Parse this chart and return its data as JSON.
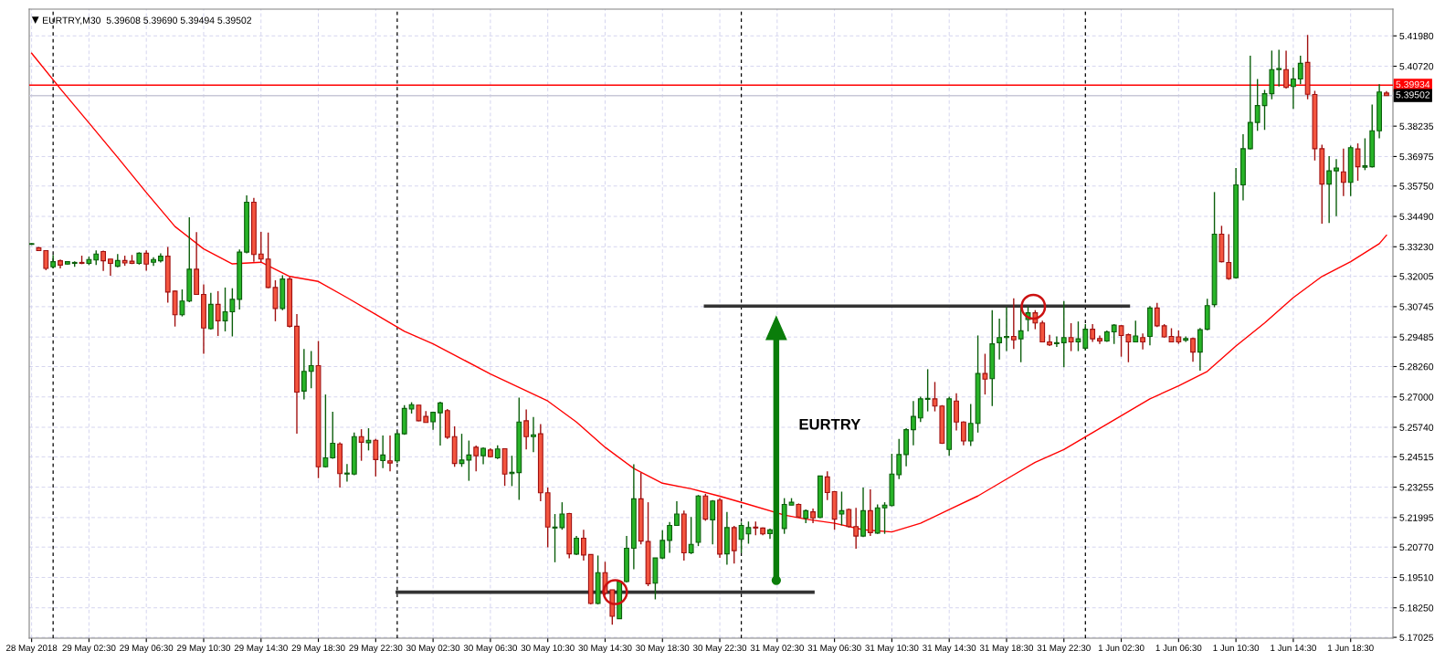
{
  "chart_data": {
    "type": "candlestick",
    "title": "EURTRY,M30  5.39608 5.39690 5.39494 5.39502",
    "annotations": [
      "EURTRY"
    ],
    "x": [
      "2018-05-28T22:30",
      "2018-05-28T23:00",
      "2018-05-28T23:30",
      "2018-05-29T00:00",
      "2018-05-29T00:30",
      "2018-05-29T01:00",
      "2018-05-29T01:30",
      "2018-05-29T02:00",
      "2018-05-29T02:30",
      "2018-05-29T03:00",
      "2018-05-29T03:30",
      "2018-05-29T04:00",
      "2018-05-29T04:30",
      "2018-05-29T05:00",
      "2018-05-29T05:30",
      "2018-05-29T06:00",
      "2018-05-29T06:30",
      "2018-05-29T07:00",
      "2018-05-29T07:30",
      "2018-05-29T08:00",
      "2018-05-29T08:30",
      "2018-05-29T09:00",
      "2018-05-29T09:30",
      "2018-05-29T10:00",
      "2018-05-29T10:30",
      "2018-05-29T11:00",
      "2018-05-29T11:30",
      "2018-05-29T12:00",
      "2018-05-29T12:30",
      "2018-05-29T13:00",
      "2018-05-29T13:30",
      "2018-05-29T14:00",
      "2018-05-29T14:30",
      "2018-05-29T15:00",
      "2018-05-29T15:30",
      "2018-05-29T16:00",
      "2018-05-29T16:30",
      "2018-05-29T17:00",
      "2018-05-29T17:30",
      "2018-05-29T18:00",
      "2018-05-29T18:30",
      "2018-05-29T19:00",
      "2018-05-29T19:30",
      "2018-05-29T20:00",
      "2018-05-29T20:30",
      "2018-05-29T21:00",
      "2018-05-29T21:30",
      "2018-05-29T22:00",
      "2018-05-29T22:30",
      "2018-05-29T23:00",
      "2018-05-29T23:30",
      "2018-05-30T00:00",
      "2018-05-30T00:30",
      "2018-05-30T01:00",
      "2018-05-30T01:30",
      "2018-05-30T02:00",
      "2018-05-30T02:30",
      "2018-05-30T03:00",
      "2018-05-30T03:30",
      "2018-05-30T04:00",
      "2018-05-30T04:30",
      "2018-05-30T05:00",
      "2018-05-30T05:30",
      "2018-05-30T06:00",
      "2018-05-30T06:30",
      "2018-05-30T07:00",
      "2018-05-30T07:30",
      "2018-05-30T08:00",
      "2018-05-30T08:30",
      "2018-05-30T09:00",
      "2018-05-30T09:30",
      "2018-05-30T10:00",
      "2018-05-30T10:30",
      "2018-05-30T11:00",
      "2018-05-30T11:30",
      "2018-05-30T12:00",
      "2018-05-30T12:30",
      "2018-05-30T13:00",
      "2018-05-30T13:30",
      "2018-05-30T14:00",
      "2018-05-30T14:30",
      "2018-05-30T15:00",
      "2018-05-30T15:30",
      "2018-05-30T16:00",
      "2018-05-30T16:30",
      "2018-05-30T17:00",
      "2018-05-30T17:30",
      "2018-05-30T18:00",
      "2018-05-30T18:30",
      "2018-05-30T19:00",
      "2018-05-30T19:30",
      "2018-05-30T20:00",
      "2018-05-30T20:30",
      "2018-05-30T21:00",
      "2018-05-30T21:30",
      "2018-05-30T22:00",
      "2018-05-30T22:30",
      "2018-05-30T23:00",
      "2018-05-30T23:30",
      "2018-05-31T00:00",
      "2018-05-31T00:30",
      "2018-05-31T01:00",
      "2018-05-31T01:30",
      "2018-05-31T02:00",
      "2018-05-31T03:00",
      "2018-05-31T03:30",
      "2018-05-31T04:00",
      "2018-05-31T04:30",
      "2018-05-31T05:00",
      "2018-05-31T05:30",
      "2018-05-31T06:00",
      "2018-05-31T06:30",
      "2018-05-31T07:00",
      "2018-05-31T07:30",
      "2018-05-31T08:00",
      "2018-05-31T08:30",
      "2018-05-31T09:00",
      "2018-05-31T09:30",
      "2018-05-31T10:00",
      "2018-05-31T10:30",
      "2018-05-31T11:00",
      "2018-05-31T11:30",
      "2018-05-31T12:00",
      "2018-05-31T12:30",
      "2018-05-31T13:00",
      "2018-05-31T13:30",
      "2018-05-31T14:00",
      "2018-05-31T14:30",
      "2018-05-31T15:00",
      "2018-05-31T15:30",
      "2018-05-31T16:00",
      "2018-05-31T16:30",
      "2018-05-31T17:00",
      "2018-05-31T17:30",
      "2018-05-31T18:00",
      "2018-05-31T18:30",
      "2018-05-31T19:00",
      "2018-05-31T19:30",
      "2018-05-31T20:00",
      "2018-05-31T20:30",
      "2018-05-31T21:00",
      "2018-05-31T21:30",
      "2018-05-31T22:00",
      "2018-05-31T22:30",
      "2018-05-31T23:00",
      "2018-05-31T23:30",
      "2018-06-01T00:00",
      "2018-06-01T00:30",
      "2018-06-01T01:00",
      "2018-06-01T01:30",
      "2018-06-01T02:00",
      "2018-06-01T02:30",
      "2018-06-01T03:00",
      "2018-06-01T03:30",
      "2018-06-01T04:00",
      "2018-06-01T04:30",
      "2018-06-01T05:00",
      "2018-06-01T05:30",
      "2018-06-01T06:00",
      "2018-06-01T06:30",
      "2018-06-01T07:00",
      "2018-06-01T07:30",
      "2018-06-01T08:00",
      "2018-06-01T08:30",
      "2018-06-01T09:00",
      "2018-06-01T09:30",
      "2018-06-01T10:00",
      "2018-06-01T10:30",
      "2018-06-01T11:00",
      "2018-06-01T11:30",
      "2018-06-01T12:00",
      "2018-06-01T12:30",
      "2018-06-01T13:00",
      "2018-06-01T13:30",
      "2018-06-01T14:00",
      "2018-06-01T14:30",
      "2018-06-01T15:00",
      "2018-06-01T15:30",
      "2018-06-01T16:00",
      "2018-06-01T16:30",
      "2018-06-01T17:00",
      "2018-06-01T17:30",
      "2018-06-01T18:00",
      "2018-06-01T18:30",
      "2018-06-01T19:00",
      "2018-06-01T19:30",
      "2018-06-01T20:00",
      "2018-06-01T20:30",
      "2018-06-01T21:00"
    ],
    "ohlc": [
      [
        5.3333,
        5.3338,
        5.3331,
        5.3336
      ],
      [
        5.3319,
        5.3322,
        5.3307,
        5.3307
      ],
      [
        5.3307,
        5.3309,
        5.3226,
        5.3233
      ],
      [
        5.324,
        5.3289,
        5.3233,
        5.3261
      ],
      [
        5.3265,
        5.327,
        5.3233,
        5.3247
      ],
      [
        5.3251,
        5.3263,
        5.3249,
        5.3261
      ],
      [
        5.3254,
        5.3263,
        5.324,
        5.3258
      ],
      [
        5.3258,
        5.3286,
        5.3251,
        5.3254
      ],
      [
        5.3254,
        5.3282,
        5.3247,
        5.327
      ],
      [
        5.3268,
        5.3308,
        5.3247,
        5.3293
      ],
      [
        5.3303,
        5.3307,
        5.3223,
        5.3265
      ],
      [
        5.3272,
        5.3272,
        5.3203,
        5.3254
      ],
      [
        5.3242,
        5.3293,
        5.3238,
        5.3266
      ],
      [
        5.3266,
        5.3286,
        5.3244,
        5.3256
      ],
      [
        5.3263,
        5.3289,
        5.3251,
        5.3254
      ],
      [
        5.3254,
        5.33,
        5.3249,
        5.3296
      ],
      [
        5.3296,
        5.3308,
        5.3224,
        5.3251
      ],
      [
        5.3259,
        5.328,
        5.3244,
        5.327
      ],
      [
        5.3265,
        5.3296,
        5.3258,
        5.3284
      ],
      [
        5.3284,
        5.3322,
        5.3091,
        5.3135
      ],
      [
        5.3139,
        5.3142,
        5.2992,
        5.3041
      ],
      [
        5.3041,
        5.3146,
        5.3034,
        5.3098
      ],
      [
        5.3098,
        5.3445,
        5.3093,
        5.323
      ],
      [
        5.323,
        5.3384,
        5.3125,
        5.3125
      ],
      [
        5.3125,
        5.3167,
        5.2879,
        5.2986
      ],
      [
        5.2983,
        5.3132,
        5.2979,
        5.3084
      ],
      [
        5.3084,
        5.3139,
        5.2953,
        5.3016
      ],
      [
        5.3016,
        5.3154,
        5.2972,
        5.3053
      ],
      [
        5.3053,
        5.3151,
        5.2951,
        5.3105
      ],
      [
        5.3105,
        5.3312,
        5.3063,
        5.3301
      ],
      [
        5.3301,
        5.3536,
        5.3296,
        5.3508
      ],
      [
        5.3508,
        5.3526,
        5.3261,
        5.3291
      ],
      [
        5.3293,
        5.3385,
        5.3259,
        5.3272
      ],
      [
        5.3272,
        5.3382,
        5.3151,
        5.3154
      ],
      [
        5.3154,
        5.3184,
        5.3014,
        5.3067
      ],
      [
        5.3067,
        5.3205,
        5.306,
        5.3189
      ],
      [
        5.3189,
        5.3198,
        5.2988,
        5.2993
      ],
      [
        5.2993,
        5.3044,
        5.2548,
        5.272
      ],
      [
        5.2724,
        5.2899,
        5.269,
        5.2806
      ],
      [
        5.2806,
        5.289,
        5.2736,
        5.283
      ],
      [
        5.283,
        5.2932,
        5.2363,
        5.241
      ],
      [
        5.241,
        5.271,
        5.2407,
        5.2447
      ],
      [
        5.2447,
        5.2638,
        5.2443,
        5.2508
      ],
      [
        5.2505,
        5.2512,
        5.2324,
        5.2382
      ],
      [
        5.238,
        5.2422,
        5.2349,
        5.2384
      ],
      [
        5.238,
        5.2552,
        5.2375,
        5.2535
      ],
      [
        5.2535,
        5.2566,
        5.2435,
        5.2512
      ],
      [
        5.251,
        5.257,
        5.2478,
        5.252
      ],
      [
        5.252,
        5.2526,
        5.237,
        5.244
      ],
      [
        5.2436,
        5.254,
        5.2405,
        5.2459
      ],
      [
        5.2435,
        5.254,
        5.2391,
        5.2426
      ],
      [
        5.2435,
        5.2552,
        5.2426,
        5.2547
      ],
      [
        5.2547,
        5.2666,
        5.2543,
        5.2652
      ],
      [
        5.265,
        5.2678,
        5.2631,
        5.2668
      ],
      [
        5.2666,
        5.2666,
        5.2599,
        5.2601
      ],
      [
        5.2619,
        5.2641,
        5.2594,
        5.2594
      ],
      [
        5.2597,
        5.2638,
        5.2564,
        5.2636
      ],
      [
        5.2634,
        5.268,
        5.2498,
        5.2675
      ],
      [
        5.2643,
        5.265,
        5.2526,
        5.2533
      ],
      [
        5.2535,
        5.2578,
        5.241,
        5.2424
      ],
      [
        5.2424,
        5.2547,
        5.241,
        5.2438
      ],
      [
        5.2438,
        5.2519,
        5.2352,
        5.2459
      ],
      [
        5.2491,
        5.2498,
        5.2391,
        5.2456
      ],
      [
        5.2456,
        5.2491,
        5.2421,
        5.2487
      ],
      [
        5.248,
        5.2487,
        5.2449,
        5.2452
      ],
      [
        5.2447,
        5.2499,
        5.2442,
        5.2484
      ],
      [
        5.2485,
        5.2485,
        5.2331,
        5.238
      ],
      [
        5.2382,
        5.2456,
        5.233,
        5.2387
      ],
      [
        5.2386,
        5.2697,
        5.2273,
        5.2596
      ],
      [
        5.2601,
        5.2648,
        5.2482,
        5.2535
      ],
      [
        5.2535,
        5.2617,
        5.2471,
        5.2543
      ],
      [
        5.2547,
        5.2587,
        5.2267,
        5.2302
      ],
      [
        5.2302,
        5.2324,
        5.2076,
        5.216
      ],
      [
        5.2156,
        5.2214,
        5.2014,
        5.216
      ],
      [
        5.2158,
        5.2263,
        5.2149,
        5.2214
      ],
      [
        5.2216,
        5.2219,
        5.203,
        5.2049
      ],
      [
        5.2048,
        5.2123,
        5.2044,
        5.2114
      ],
      [
        5.2114,
        5.2149,
        5.2021,
        5.2044
      ],
      [
        5.2046,
        5.2046,
        5.1839,
        5.1843
      ],
      [
        5.1843,
        5.2042,
        5.1839,
        5.1971
      ],
      [
        5.1971,
        5.2016,
        5.1876,
        5.1886
      ],
      [
        5.19,
        5.19,
        5.1755,
        5.179
      ],
      [
        5.178,
        5.1934,
        5.178,
        5.1934
      ],
      [
        5.1934,
        5.2123,
        5.193,
        5.2072
      ],
      [
        5.2072,
        5.2421,
        5.1985,
        5.2277
      ],
      [
        5.2277,
        5.2386,
        5.2088,
        5.2102
      ],
      [
        5.21,
        5.2263,
        5.1915,
        5.1925
      ],
      [
        5.1927,
        5.2032,
        5.186,
        5.2032
      ],
      [
        5.2032,
        5.2147,
        5.2027,
        5.2105
      ],
      [
        5.2105,
        5.2181,
        5.2053,
        5.2167
      ],
      [
        5.2167,
        5.2267,
        5.2167,
        5.2214
      ],
      [
        5.2214,
        5.2228,
        5.2021,
        5.2053
      ],
      [
        5.2053,
        5.2202,
        5.2048,
        5.2088
      ],
      [
        5.2097,
        5.2293,
        5.2081,
        5.2289
      ],
      [
        5.2289,
        5.2298,
        5.2186,
        5.2193
      ],
      [
        5.219,
        5.2272,
        5.2088,
        5.2268
      ],
      [
        5.2272,
        5.228,
        5.2032,
        5.2048
      ],
      [
        5.2049,
        5.2223,
        5.2004,
        5.2158
      ],
      [
        5.2158,
        5.2165,
        5.2009,
        5.2062
      ],
      [
        5.2109,
        5.2179,
        5.2053,
        5.2167
      ],
      [
        5.2132,
        5.2183,
        5.2091,
        5.2158
      ],
      [
        5.216,
        5.2183,
        5.2126,
        5.2156
      ],
      [
        5.2156,
        5.2158,
        5.2126,
        5.2132
      ],
      [
        5.2133,
        5.2154,
        5.2111,
        5.2149
      ],
      [
        5.2154,
        5.228,
        5.2132,
        5.2254
      ],
      [
        5.2251,
        5.228,
        5.2251,
        5.2263
      ],
      [
        5.2254,
        5.2258,
        5.22,
        5.2202
      ],
      [
        5.2197,
        5.2233,
        5.2176,
        5.2228
      ],
      [
        5.2223,
        5.2237,
        5.2176,
        5.2198
      ],
      [
        5.22,
        5.2372,
        5.2197,
        5.2372
      ],
      [
        5.2368,
        5.2391,
        5.2272,
        5.2303
      ],
      [
        5.2307,
        5.231,
        5.2149,
        5.2193
      ],
      [
        5.2214,
        5.2307,
        5.2167,
        5.2228
      ],
      [
        5.2233,
        5.2237,
        5.2158,
        5.2162
      ],
      [
        5.2162,
        5.224,
        5.207,
        5.2123
      ],
      [
        5.2123,
        5.2324,
        5.2119,
        5.2228
      ],
      [
        5.2228,
        5.2316,
        5.2123,
        5.2137
      ],
      [
        5.2135,
        5.2254,
        5.2132,
        5.224
      ],
      [
        5.224,
        5.2263,
        5.2132,
        5.2251
      ],
      [
        5.2249,
        5.2464,
        5.2246,
        5.238
      ],
      [
        5.2377,
        5.2526,
        5.2359,
        5.2461
      ],
      [
        5.2461,
        5.257,
        5.2412,
        5.2564
      ],
      [
        5.2564,
        5.2683,
        5.2499,
        5.2619
      ],
      [
        5.2613,
        5.2701,
        5.2596,
        5.2692
      ],
      [
        5.269,
        5.2815,
        5.264,
        5.2694
      ],
      [
        5.2692,
        5.2762,
        5.264,
        5.2662
      ],
      [
        5.2662,
        5.2666,
        5.2505,
        5.2508
      ],
      [
        5.2482,
        5.2701,
        5.2456,
        5.2692
      ],
      [
        5.2683,
        5.2715,
        5.2561,
        5.2596
      ],
      [
        5.2596,
        5.2599,
        5.2499,
        5.2517
      ],
      [
        5.2517,
        5.2671,
        5.2496,
        5.259
      ],
      [
        5.259,
        5.2955,
        5.2552,
        5.2797
      ],
      [
        5.2797,
        5.2879,
        5.271,
        5.2774
      ],
      [
        5.2776,
        5.306,
        5.2662,
        5.292
      ],
      [
        5.2925,
        5.3025,
        5.2855,
        5.2946
      ],
      [
        5.2946,
        5.3072,
        5.289,
        5.2951
      ],
      [
        5.2951,
        5.3109,
        5.2899,
        5.2937
      ],
      [
        5.2941,
        5.3072,
        5.2844,
        5.2974
      ],
      [
        5.3021,
        5.3074,
        5.2972,
        5.3049
      ],
      [
        5.3049,
        5.306,
        5.2981,
        5.3007
      ],
      [
        5.3007,
        5.3016,
        5.2927,
        5.2928
      ],
      [
        5.2928,
        5.2958,
        5.2911,
        5.2916
      ],
      [
        5.2921,
        5.2951,
        5.2907,
        5.2925
      ],
      [
        5.2925,
        5.3098,
        5.2823,
        5.2946
      ],
      [
        5.2946,
        5.3006,
        5.289,
        5.2928
      ],
      [
        5.2928,
        5.3013,
        5.289,
        5.2941
      ],
      [
        5.2902,
        5.3002,
        5.2893,
        5.2981
      ],
      [
        5.2981,
        5.3002,
        5.2928,
        5.2941
      ],
      [
        5.2942,
        5.2955,
        5.292,
        5.2932
      ],
      [
        5.2932,
        5.2976,
        5.2928,
        5.297
      ],
      [
        5.297,
        5.3002,
        5.292,
        5.2998
      ],
      [
        5.2995,
        5.2998,
        5.2867,
        5.2955
      ],
      [
        5.2958,
        5.2963,
        5.2844,
        5.2928
      ],
      [
        5.2928,
        5.3016,
        5.2927,
        5.2953
      ],
      [
        5.2946,
        5.2963,
        5.2897,
        5.2928
      ],
      [
        5.2951,
        5.3077,
        5.2914,
        5.3069
      ],
      [
        5.3069,
        5.309,
        5.299,
        5.2995
      ],
      [
        5.2995,
        5.3002,
        5.2946,
        5.2949
      ],
      [
        5.2951,
        5.2985,
        5.2927,
        5.2928
      ],
      [
        5.2949,
        5.2976,
        5.292,
        5.2928
      ],
      [
        5.2935,
        5.2951,
        5.2928,
        5.2942
      ],
      [
        5.2942,
        5.2946,
        5.2846,
        5.2886
      ],
      [
        5.2886,
        5.2986,
        5.2809,
        5.2979
      ],
      [
        5.2981,
        5.3107,
        5.2977,
        5.3079
      ],
      [
        5.3083,
        5.355,
        5.3072,
        5.3375
      ],
      [
        5.3375,
        5.341,
        5.3258,
        5.3261
      ],
      [
        5.3258,
        5.3375,
        5.3186,
        5.3191
      ],
      [
        5.3195,
        5.365,
        5.3191,
        5.358
      ],
      [
        5.358,
        5.379,
        5.3515,
        5.373
      ],
      [
        5.373,
        5.4116,
        5.3727,
        5.3839
      ],
      [
        5.3839,
        5.4019,
        5.3804,
        5.3909
      ],
      [
        5.3909,
        5.3974,
        5.3808,
        5.3958
      ],
      [
        5.3958,
        5.4137,
        5.3935,
        5.4058
      ],
      [
        5.4058,
        5.414,
        5.3988,
        5.4063
      ],
      [
        5.4058,
        5.4137,
        5.3979,
        5.3984
      ],
      [
        5.3988,
        5.4067,
        5.3895,
        5.4019
      ],
      [
        5.4019,
        5.4116,
        5.3997,
        5.4084
      ],
      [
        5.4088,
        5.4202,
        5.3935,
        5.3956
      ],
      [
        5.3955,
        5.397,
        5.3681,
        5.373
      ],
      [
        5.373,
        5.3746,
        5.3419,
        5.3583
      ],
      [
        5.3583,
        5.3699,
        5.3422,
        5.3638
      ],
      [
        5.3638,
        5.3687,
        5.345,
        5.365
      ],
      [
        5.3634,
        5.373,
        5.3533,
        5.359
      ],
      [
        5.359,
        5.3743,
        5.3533,
        5.3734
      ],
      [
        5.3729,
        5.3752,
        5.3597,
        5.3655
      ],
      [
        5.3653,
        5.3773,
        5.3641,
        5.3659
      ],
      [
        5.3655,
        5.3913,
        5.3652,
        5.3804
      ],
      [
        5.3804,
        5.3997,
        5.3773,
        5.3965
      ],
      [
        5.39608,
        5.3969,
        5.39494,
        5.39502
      ]
    ],
    "series": [
      {
        "type": "line",
        "color": "#ff0000",
        "x": [
          "2018-05-28T22:30",
          "2018-05-29T00:30",
          "2018-05-29T02:30",
          "2018-05-29T04:30",
          "2018-05-29T06:30",
          "2018-05-29T08:30",
          "2018-05-29T10:30",
          "2018-05-29T12:30",
          "2018-05-29T14:30",
          "2018-05-29T16:30",
          "2018-05-29T18:30",
          "2018-05-29T20:30",
          "2018-05-29T22:30",
          "2018-05-30T00:30",
          "2018-05-30T02:30",
          "2018-05-30T04:30",
          "2018-05-30T06:30",
          "2018-05-30T08:30",
          "2018-05-30T10:30",
          "2018-05-30T12:30",
          "2018-05-30T14:30",
          "2018-05-30T16:30",
          "2018-05-30T18:30",
          "2018-05-30T20:30",
          "2018-05-30T22:30",
          "2018-05-31T00:30",
          "2018-05-31T03:00",
          "2018-05-31T04:30",
          "2018-05-31T06:30",
          "2018-05-31T08:30",
          "2018-05-31T10:30",
          "2018-05-31T12:30",
          "2018-05-31T14:30",
          "2018-05-31T16:30",
          "2018-05-31T18:30",
          "2018-05-31T20:30",
          "2018-05-31T22:30",
          "2018-06-01T00:30",
          "2018-06-01T02:30",
          "2018-06-01T04:30",
          "2018-06-01T06:30",
          "2018-06-01T08:30",
          "2018-06-01T10:30",
          "2018-06-01T12:30",
          "2018-06-01T14:30",
          "2018-06-01T16:30",
          "2018-06-01T18:30",
          "2018-06-01T20:30",
          "2018-06-01T21:00"
        ],
        "values": [
          5.4126,
          5.3979,
          5.3837,
          5.3694,
          5.3548,
          5.3407,
          5.3314,
          5.3252,
          5.3259,
          5.32,
          5.3179,
          5.3112,
          5.3042,
          5.2972,
          5.292,
          5.2858,
          5.2795,
          5.2739,
          5.2683,
          5.2596,
          5.2491,
          5.2403,
          5.2342,
          5.2319,
          5.2288,
          5.2254,
          5.221,
          5.2193,
          5.2176,
          5.2149,
          5.214,
          5.2176,
          5.2233,
          5.2289,
          5.2359,
          5.2429,
          5.2482,
          5.2552,
          5.2622,
          5.2692,
          5.2746,
          5.2806,
          5.2911,
          5.3007,
          5.3112,
          5.32,
          5.3261,
          5.3336,
          5.3371
        ]
      },
      {
        "type": "line",
        "color": "#333333",
        "x": [
          "2018-05-30T00:00",
          "2018-05-31T05:00"
        ],
        "values": [
          5.189,
          5.189
        ]
      },
      {
        "type": "line",
        "color": "#333333",
        "x": [
          "2018-05-30T21:30",
          "2018-06-01T03:00"
        ],
        "values": [
          5.3077,
          5.3077
        ]
      }
    ],
    "ref_lines": [
      {
        "axis": "y",
        "value": 5.39934,
        "label": "5.39934",
        "color": "#ff0000"
      },
      {
        "axis": "y",
        "value": 5.39502,
        "label": "5.39502",
        "color": "#c8c8d8"
      },
      {
        "axis": "x",
        "value": "2018-05-29T00:00",
        "color": "#000000",
        "line_style": "dashed"
      },
      {
        "axis": "x",
        "value": "2018-05-30T00:00",
        "color": "#000000",
        "line_style": "dashed"
      },
      {
        "axis": "x",
        "value": "2018-05-31T00:00",
        "color": "#000000",
        "line_style": "dashed"
      },
      {
        "axis": "x",
        "value": "2018-06-01T00:00",
        "color": "#000000",
        "line_style": "dashed"
      }
    ],
    "xlim": [
      "2018-05-28T22:20",
      "2018-06-01T21:27"
    ],
    "xticks": [
      {
        "value": "2018-05-28T22:30",
        "label": "28 May 2018"
      },
      {
        "value": "2018-05-29T02:30",
        "label": "29 May 02:30"
      },
      {
        "value": "2018-05-29T06:30",
        "label": "29 May 06:30"
      },
      {
        "value": "2018-05-29T10:30",
        "label": "29 May 10:30"
      },
      {
        "value": "2018-05-29T14:30",
        "label": "29 May 14:30"
      },
      {
        "value": "2018-05-29T18:30",
        "label": "29 May 18:30"
      },
      {
        "value": "2018-05-29T22:30",
        "label": "29 May 22:30"
      },
      {
        "value": "2018-05-30T02:30",
        "label": "30 May 02:30"
      },
      {
        "value": "2018-05-30T06:30",
        "label": "30 May 06:30"
      },
      {
        "value": "2018-05-30T10:30",
        "label": "30 May 10:30"
      },
      {
        "value": "2018-05-30T14:30",
        "label": "30 May 14:30"
      },
      {
        "value": "2018-05-30T18:30",
        "label": "30 May 18:30"
      },
      {
        "value": "2018-05-30T22:30",
        "label": "30 May 22:30"
      },
      {
        "value": "2018-05-31T02:30",
        "label": "31 May 02:30"
      },
      {
        "value": "2018-05-31T06:30",
        "label": "31 May 06:30"
      },
      {
        "value": "2018-05-31T10:30",
        "label": "31 May 10:30"
      },
      {
        "value": "2018-05-31T14:30",
        "label": "31 May 14:30"
      },
      {
        "value": "2018-05-31T18:30",
        "label": "31 May 18:30"
      },
      {
        "value": "2018-05-31T22:30",
        "label": "31 May 22:30"
      },
      {
        "value": "2018-06-01T02:30",
        "label": "1 Jun 02:30"
      },
      {
        "value": "2018-06-01T06:30",
        "label": "1 Jun 06:30"
      },
      {
        "value": "2018-06-01T10:30",
        "label": "1 Jun 10:30"
      },
      {
        "value": "2018-06-01T14:30",
        "label": "1 Jun 14:30"
      },
      {
        "value": "2018-06-01T18:30",
        "label": "1 Jun 18:30"
      }
    ],
    "ylim": [
      5.1699,
      5.4309
    ],
    "yticks": [
      {
        "value": 5.4198,
        "label": "5.41980"
      },
      {
        "value": 5.4072,
        "label": "5.40720"
      },
      {
        "value": 5.38235,
        "label": "5.38235"
      },
      {
        "value": 5.36975,
        "label": "5.36975"
      },
      {
        "value": 5.3575,
        "label": "5.35750"
      },
      {
        "value": 5.3449,
        "label": "5.34490"
      },
      {
        "value": 5.3323,
        "label": "5.33230"
      },
      {
        "value": 5.32005,
        "label": "5.32005"
      },
      {
        "value": 5.30745,
        "label": "5.30745"
      },
      {
        "value": 5.29485,
        "label": "5.29485"
      },
      {
        "value": 5.2826,
        "label": "5.28260"
      },
      {
        "value": 5.27,
        "label": "5.27000"
      },
      {
        "value": 5.2574,
        "label": "5.25740"
      },
      {
        "value": 5.24515,
        "label": "5.24515"
      },
      {
        "value": 5.23255,
        "label": "5.23255"
      },
      {
        "value": 5.21995,
        "label": "5.21995"
      },
      {
        "value": 5.2077,
        "label": "5.20770"
      },
      {
        "value": 5.1951,
        "label": "5.19510"
      },
      {
        "value": 5.1825,
        "label": "5.18250"
      },
      {
        "value": 5.17025,
        "label": "5.17025"
      }
    ],
    "grid": true
  }
}
